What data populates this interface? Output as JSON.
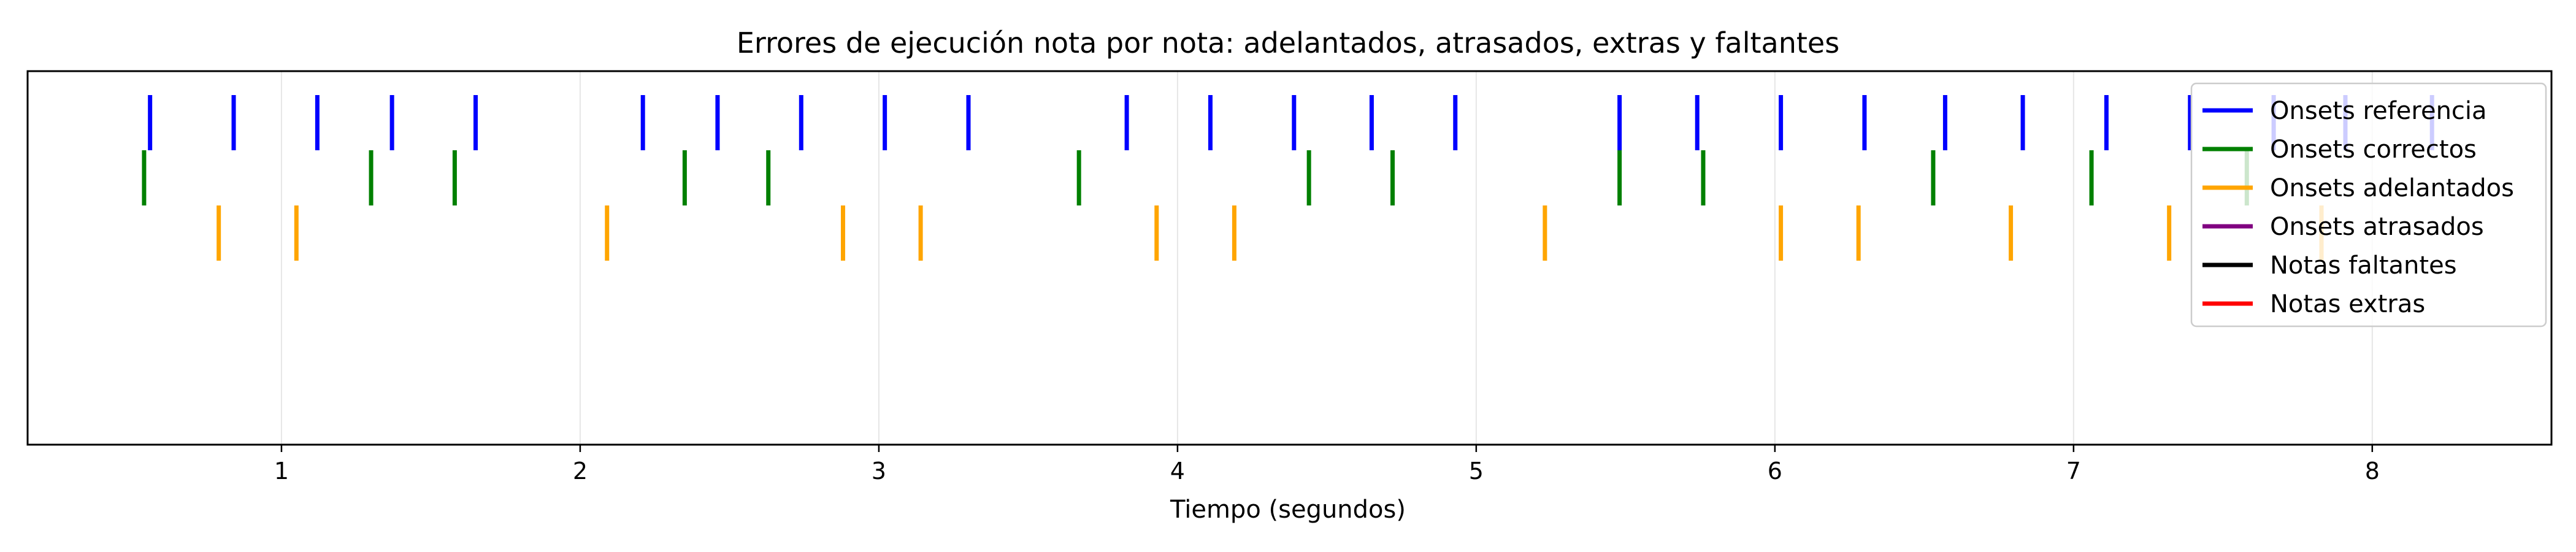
{
  "chart_data": {
    "type": "scatter",
    "title": "Errores de ejecución nota por nota: adelantados, atrasados, extras y faltantes",
    "xlabel": "Tiempo (segundos)",
    "ylabel": "",
    "xlim": [
      0.15,
      8.6
    ],
    "xticks": [
      1,
      2,
      3,
      4,
      5,
      6,
      7,
      8
    ],
    "grid": "vertical",
    "legend_position": "top-right",
    "series": [
      {
        "name": "Onsets referencia",
        "color": "#0000ff",
        "row": 0,
        "x": [
          0.56,
          0.84,
          1.12,
          1.37,
          1.65,
          2.21,
          2.46,
          2.74,
          3.02,
          3.3,
          3.83,
          4.11,
          4.39,
          4.65,
          4.93,
          5.48,
          5.74,
          6.02,
          6.3,
          6.57,
          6.83,
          7.11,
          7.39,
          7.67,
          7.91,
          8.2
        ]
      },
      {
        "name": "Onsets correctos",
        "color": "#008000",
        "row": 1,
        "x": [
          0.54,
          1.3,
          1.58,
          2.35,
          2.63,
          3.67,
          4.44,
          4.72,
          5.48,
          5.76,
          6.53,
          7.06,
          7.58
        ]
      },
      {
        "name": "Onsets adelantados",
        "color": "#ffa500",
        "row": 2,
        "x": [
          0.79,
          1.05,
          2.09,
          2.88,
          3.14,
          3.93,
          4.19,
          5.23,
          6.02,
          6.28,
          6.79,
          7.32,
          7.83
        ]
      },
      {
        "name": "Onsets atrasados",
        "color": "#800080",
        "row": 3,
        "x": []
      },
      {
        "name": "Notas faltantes",
        "color": "#000000",
        "row": 4,
        "x": []
      },
      {
        "name": "Notas extras",
        "color": "#ff0000",
        "row": 5,
        "x": []
      }
    ]
  }
}
